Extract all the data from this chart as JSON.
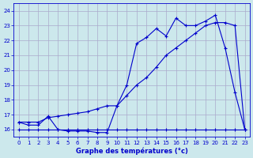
{
  "title": "Graphe des températures (°c)",
  "bg_color": "#cce8ec",
  "grid_color": "#aaaacc",
  "line_color": "#0000cc",
  "xlim": [
    -0.5,
    23.5
  ],
  "ylim": [
    15.5,
    24.5
  ],
  "xticks": [
    0,
    1,
    2,
    3,
    4,
    5,
    6,
    7,
    8,
    9,
    10,
    11,
    12,
    13,
    14,
    15,
    16,
    17,
    18,
    19,
    20,
    21,
    22,
    23
  ],
  "yticks": [
    16,
    17,
    18,
    19,
    20,
    21,
    22,
    23,
    24
  ],
  "line1_x": [
    0,
    1,
    2,
    3,
    4,
    5,
    6,
    7,
    8,
    9,
    10,
    11,
    12,
    13,
    14,
    15,
    16,
    17,
    18,
    19,
    20,
    21,
    22,
    23
  ],
  "line1_y": [
    16.0,
    16.0,
    16.0,
    16.0,
    16.0,
    16.0,
    16.0,
    16.0,
    16.0,
    16.0,
    16.0,
    16.0,
    16.0,
    16.0,
    16.0,
    16.0,
    16.0,
    16.0,
    16.0,
    16.0,
    16.0,
    16.0,
    16.0,
    16.0
  ],
  "line2_x": [
    0,
    1,
    2,
    3,
    4,
    5,
    6,
    7,
    8,
    9,
    10,
    11,
    12,
    13,
    14,
    15,
    16,
    17,
    18,
    19,
    20,
    21,
    22,
    23
  ],
  "line2_y": [
    16.5,
    16.5,
    16.5,
    16.8,
    16.9,
    17.0,
    17.1,
    17.2,
    17.4,
    17.6,
    17.6,
    18.3,
    19.0,
    19.5,
    20.2,
    21.0,
    21.5,
    22.0,
    22.5,
    23.0,
    23.2,
    23.2,
    23.0,
    16.0
  ],
  "line3_x": [
    0,
    1,
    2,
    3,
    4,
    5,
    6,
    7,
    8,
    9,
    10,
    11,
    12,
    13,
    14,
    15,
    16,
    17,
    18,
    19,
    20,
    21,
    22,
    23
  ],
  "line3_y": [
    16.5,
    16.3,
    16.3,
    16.9,
    16.0,
    15.9,
    15.9,
    15.9,
    15.8,
    15.8,
    17.6,
    19.0,
    21.8,
    22.2,
    22.8,
    22.3,
    23.5,
    23.0,
    23.0,
    23.3,
    23.7,
    21.5,
    18.5,
    16.0
  ]
}
